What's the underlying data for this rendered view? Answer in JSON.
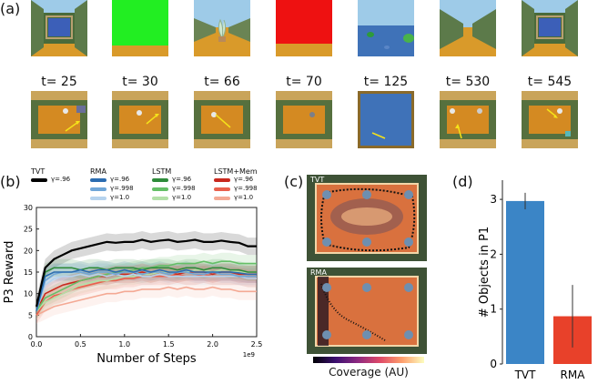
{
  "panels": {
    "a": "(a)",
    "b": "(b)",
    "c": "(c)",
    "d": "(d)"
  },
  "timesteps": [
    "t= 25",
    "t= 30",
    "t= 66",
    "t= 70",
    "t= 125",
    "t= 530",
    "t= 545"
  ],
  "legend": {
    "tvt": {
      "title": "TVT",
      "gamma": "γ=.96",
      "color": "#000000"
    },
    "rma": {
      "title": "RMA",
      "gammas": [
        "γ=.96",
        "γ=.998",
        "γ=1.0"
      ],
      "colors": [
        "#2b6cb0",
        "#6fa6d8",
        "#b6d3ee"
      ]
    },
    "lstm": {
      "title": "LSTM",
      "gammas": [
        "γ=.96",
        "γ=.998",
        "γ=1.0"
      ],
      "colors": [
        "#2e8b3a",
        "#65bf67",
        "#b3e0a8"
      ]
    },
    "lstm_mem": {
      "title": "LSTM+Mem",
      "gammas": [
        "γ=.96",
        "γ=.998",
        "γ=1.0"
      ],
      "colors": [
        "#c8281e",
        "#e9604d",
        "#f4a994"
      ]
    }
  },
  "coverage": {
    "tvt_label": "TVT",
    "rma_label": "RMA",
    "colorbar_label": "Coverage (AU)"
  },
  "chart_data": [
    {
      "type": "line",
      "xlabel": "Number of Steps",
      "ylabel": "P3 Reward",
      "x_multiplier": "1e9",
      "xlim": [
        0,
        2.5
      ],
      "ylim": [
        0,
        30
      ],
      "xticks": [
        "0.0",
        "0.5",
        "1.0",
        "1.5",
        "2.0",
        "2.5"
      ],
      "yticks": [
        "0",
        "5",
        "10",
        "15",
        "20",
        "25",
        "30"
      ],
      "x": [
        0,
        0.1,
        0.2,
        0.3,
        0.4,
        0.5,
        0.6,
        0.7,
        0.8,
        0.9,
        1.0,
        1.1,
        1.2,
        1.3,
        1.4,
        1.5,
        1.6,
        1.7,
        1.8,
        1.9,
        2.0,
        2.1,
        2.2,
        2.3,
        2.4,
        2.5
      ],
      "series": [
        {
          "name": "TVT γ=.96",
          "color": "#000000",
          "width": 2.2,
          "values": [
            7,
            16,
            18,
            19,
            20,
            20.5,
            21,
            21.5,
            22,
            21.8,
            22,
            22,
            22.5,
            22,
            22.3,
            22.5,
            22,
            22.2,
            22.5,
            22,
            22,
            22.3,
            22,
            21.8,
            21,
            21
          ]
        },
        {
          "name": "RMA γ=.96",
          "color": "#2b6cb0",
          "width": 1.6,
          "values": [
            6,
            14,
            15,
            15,
            15,
            15.5,
            15,
            15.5,
            15.5,
            15,
            15.5,
            15,
            15.5,
            15,
            15.5,
            15,
            15,
            15.5,
            15,
            15,
            15,
            15,
            15,
            14.8,
            14.5,
            14.5
          ]
        },
        {
          "name": "RMA γ=.998",
          "color": "#6fa6d8",
          "width": 1.6,
          "values": [
            6,
            13,
            14.5,
            15,
            15,
            15,
            14.5,
            15,
            15,
            14.5,
            15,
            15,
            14.5,
            15,
            15,
            14.5,
            15,
            15,
            14.5,
            14.5,
            15,
            14.5,
            14.5,
            14,
            14,
            14
          ]
        },
        {
          "name": "RMA γ=1.0",
          "color": "#b6d3ee",
          "width": 1.6,
          "values": [
            6,
            12,
            13.5,
            14,
            14,
            14.5,
            14,
            14.5,
            14,
            14.5,
            14,
            14.5,
            14,
            14,
            14.5,
            14,
            14,
            14,
            14,
            14,
            14,
            14,
            14,
            14,
            13.5,
            13.5
          ]
        },
        {
          "name": "LSTM γ=.96",
          "color": "#2e8b3a",
          "width": 1.6,
          "values": [
            6,
            15,
            16,
            16,
            16,
            15.5,
            16,
            16,
            15.5,
            16,
            16,
            16,
            15.5,
            16,
            16,
            16,
            15.5,
            16,
            16,
            15.5,
            16,
            16,
            15.5,
            15.5,
            15,
            15
          ]
        },
        {
          "name": "LSTM γ=.998",
          "color": "#65bf67",
          "width": 1.6,
          "values": [
            6,
            9,
            10,
            11,
            12,
            13,
            13.5,
            14,
            14.5,
            15,
            15,
            15.5,
            16,
            16,
            16.5,
            16.5,
            17,
            17,
            17,
            17.5,
            17,
            17.5,
            17.5,
            17,
            17,
            17
          ]
        },
        {
          "name": "LSTM γ=1.0",
          "color": "#b3e0a8",
          "width": 1.6,
          "values": [
            6,
            8,
            9,
            10,
            11,
            12,
            12.5,
            13,
            13,
            13.5,
            14,
            14,
            14.5,
            14.5,
            15,
            15,
            15,
            15,
            15.5,
            15.5,
            15,
            15.5,
            15.5,
            15,
            15,
            15
          ]
        },
        {
          "name": "LSTM+Mem γ=.96",
          "color": "#c8281e",
          "width": 1.6,
          "values": [
            6,
            10,
            11,
            12,
            12.5,
            13,
            13.5,
            14,
            14,
            14.5,
            14.5,
            14.5,
            15,
            14.5,
            15,
            15,
            14.5,
            15,
            15,
            15,
            14.5,
            15,
            15,
            14.5,
            14.5,
            14.5
          ]
        },
        {
          "name": "LSTM+Mem γ=.998",
          "color": "#e9604d",
          "width": 1.6,
          "values": [
            5,
            8,
            9.5,
            10,
            11,
            11.5,
            12,
            12.5,
            13,
            13,
            13.5,
            13.5,
            14,
            14,
            14,
            14,
            14.5,
            14,
            14,
            14.5,
            14,
            14,
            14,
            14,
            13.5,
            13.5
          ]
        },
        {
          "name": "LSTM+Mem γ=1.0",
          "color": "#f4a994",
          "width": 1.6,
          "values": [
            5,
            6,
            7,
            7.5,
            8,
            8.5,
            9,
            9.5,
            10,
            10,
            10.5,
            10.5,
            11,
            11,
            11,
            11.5,
            11,
            11.5,
            11,
            11,
            11.5,
            11,
            11,
            10.5,
            10.5,
            10.5
          ]
        }
      ]
    },
    {
      "type": "bar",
      "ylabel": "# Objects in P1",
      "categories": [
        "TVT",
        "RMA"
      ],
      "values": [
        2.97,
        0.87
      ],
      "errors": [
        0.15,
        0.57
      ],
      "colors": [
        "#3b85c6",
        "#e8412a"
      ],
      "ylim": [
        0,
        3.35
      ],
      "yticks": [
        "0",
        "1",
        "2",
        "3"
      ]
    }
  ]
}
